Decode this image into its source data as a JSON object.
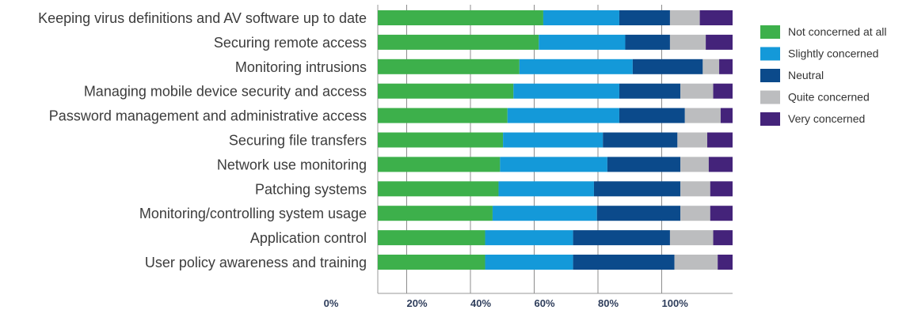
{
  "chart_data": {
    "type": "bar",
    "orientation": "horizontal",
    "stacked": true,
    "categories": [
      "Keeping virus definitions and AV software up to date",
      "Securing remote access",
      "Monitoring intrusions",
      "Managing mobile device security and access",
      "Password management and administrative access",
      "Securing file transfers",
      "Network use monitoring",
      "Patching systems",
      "Monitoring/controlling system usage",
      "Application control",
      "User policy awareness and training"
    ],
    "series": [
      {
        "name": "Not concerned at all",
        "color": "#3db04b",
        "values": [
          55.5,
          54,
          47.5,
          45.5,
          43.5,
          42,
          41,
          40.5,
          38.5,
          36,
          36
        ]
      },
      {
        "name": "Slightly concerned",
        "color": "#1499d9",
        "values": [
          25.5,
          29,
          38,
          35.5,
          37.5,
          33.5,
          36,
          32,
          35,
          29.5,
          29.5
        ]
      },
      {
        "name": "Neutral",
        "color": "#0b4a8b",
        "values": [
          17,
          15,
          23.5,
          20.5,
          22,
          25,
          24.5,
          29,
          28,
          32.5,
          34
        ]
      },
      {
        "name": "Quite concerned",
        "color": "#bcbdbf",
        "values": [
          10,
          12,
          5.5,
          11,
          12,
          10,
          9.5,
          10,
          10,
          14.5,
          14.5
        ]
      },
      {
        "name": "Very concerned",
        "color": "#44237a",
        "values": [
          11,
          10,
          5.5,
          7.5,
          5,
          9.5,
          9,
          8.5,
          8.5,
          7.5,
          6
        ]
      }
    ],
    "x_ticks": [
      "0%",
      "20%",
      "40%",
      "60%",
      "80%",
      "100%"
    ],
    "xlim": [
      0,
      119
    ],
    "grid": true,
    "legend_position": "right"
  }
}
